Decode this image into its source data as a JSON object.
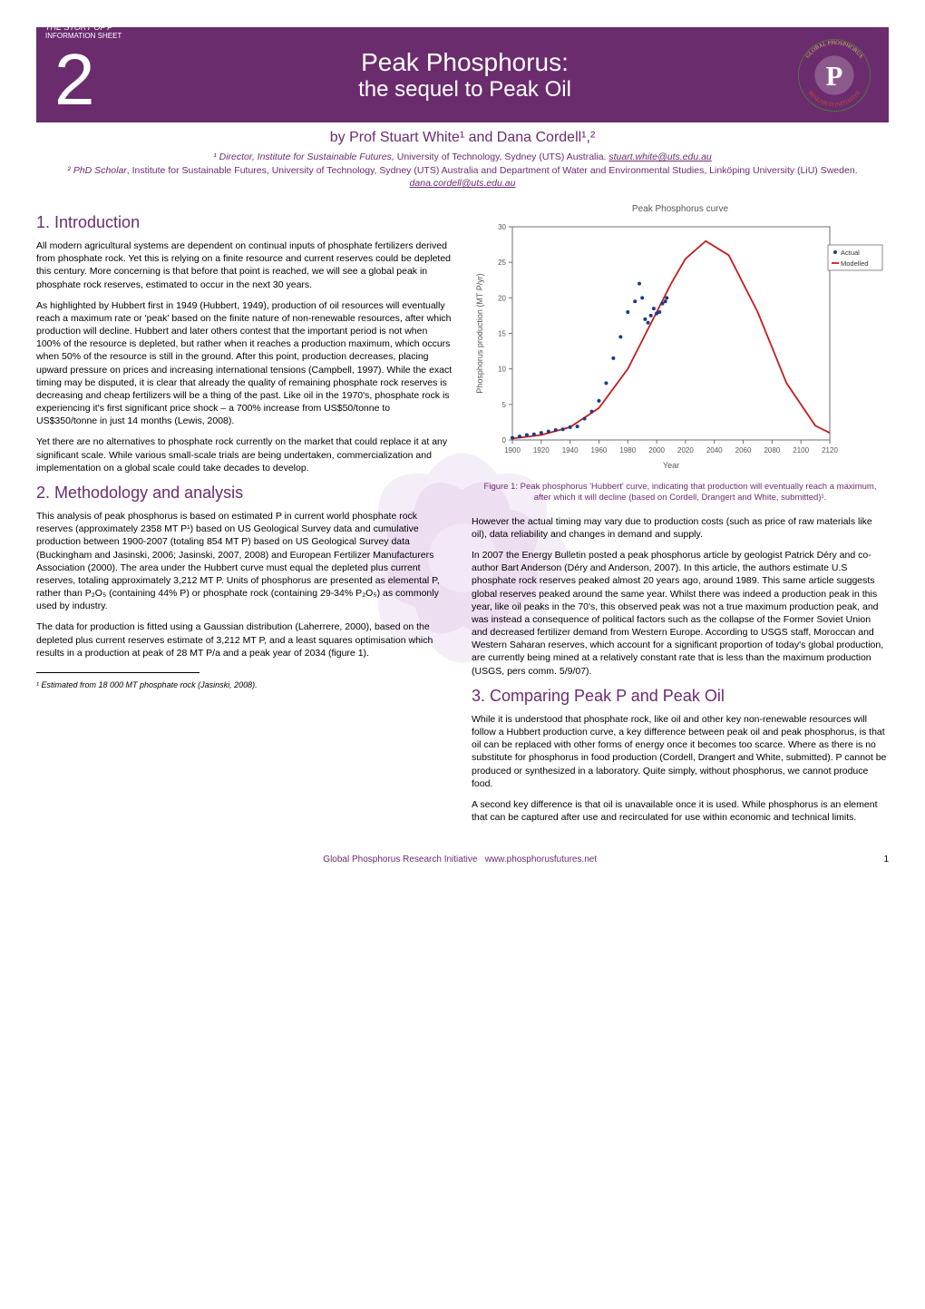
{
  "header": {
    "info_line1": "THE STORY OF P",
    "info_line2": "INFORMATION SHEET",
    "sheet_number": "2",
    "title_line1": "Peak Phosphorus:",
    "title_line2": "the sequel to Peak Oil",
    "logo_text_top": "GLOBAL PHOSPHORUS",
    "logo_text_bottom": "RESEARCH INITIATIVE",
    "bar_bg": "#6b2c6e",
    "bar_fg": "#ffffff"
  },
  "authors": {
    "byline": "by Prof Stuart White¹ and Dana Cordell¹,²",
    "aff1_label": "¹",
    "aff1_role": "Director, Institute for Sustainable Futures,",
    "aff1_inst": " University of Technology, Sydney (UTS) Australia. ",
    "aff1_email": "stuart.white@uts.edu.au",
    "aff2_label": "²",
    "aff2_role": "PhD Scholar",
    "aff2_inst": ", Institute for Sustainable Futures, University of Technology, Sydney (UTS) Australia and Department of Water and Environmental Studies, Linköping University (LiU) Sweden. ",
    "aff2_email": "dana.cordell@uts.edu.au"
  },
  "sections": {
    "s1_title": "1. Introduction",
    "s1_p1": "All modern agricultural systems are dependent on continual inputs of phosphate fertilizers derived from phosphate rock. Yet this is relying on a finite resource and current reserves could be depleted this century. More concerning is that before that point is reached, we will see a global peak in phosphate rock reserves, estimated to occur in the next 30 years.",
    "s1_p2": "As highlighted by Hubbert first in 1949 (Hubbert, 1949), production of oil resources will eventually reach a maximum rate or 'peak' based on the finite nature of non-renewable resources, after which production will decline. Hubbert and later others contest that the important period is not when 100% of the resource is depleted, but rather when it reaches a production maximum, which occurs when 50% of the resource is still in the ground. After this point, production decreases, placing upward pressure on prices and increasing international tensions (Campbell, 1997). While the exact timing may be disputed, it is clear that already the quality of remaining phosphate rock reserves is decreasing and cheap fertilizers will be a thing of the past. Like oil in the 1970's, phosphate rock is experiencing it's first significant price shock – a 700% increase from US$50/tonne to US$350/tonne in just 14 months (Lewis, 2008).",
    "s1_p3": "Yet there are no alternatives to phosphate rock currently on the market that could replace it at any significant scale. While various small-scale trials are being undertaken, commercialization and implementation on a global scale could take decades to develop.",
    "s2_title": "2. Methodology and analysis",
    "s2_p1": "This analysis of peak phosphorus is based on estimated P in current world phosphate rock reserves (approximately 2358 MT P¹) based on US Geological Survey data and cumulative production between 1900-2007 (totaling 854 MT P) based on US Geological Survey data (Buckingham and Jasinski, 2006; Jasinski, 2007, 2008) and European Fertilizer Manufacturers Association (2000). The area under the Hubbert curve must equal the depleted plus current reserves, totaling approximately 3,212 MT P. Units of phosphorus are presented as elemental P, rather than P₂O₅ (containing 44% P) or phosphate rock (containing 29-34% P₂O₅) as commonly used by industry.",
    "s2_p2": "The data for production is fitted using a Gaussian distribution (Laherrere, 2000), based on the depleted plus current reserves estimate of 3,212 MT P, and a least squares optimisation which results in a production at peak of 28 MT P/a and a peak year of 2034 (figure 1).",
    "right_p1": "However the actual timing may vary due to production costs (such as price of raw materials like oil), data reliability and changes in demand and supply.",
    "right_p2": "In 2007 the Energy Bulletin posted a peak phosphorus article by geologist Patrick Déry and co-author Bart Anderson (Déry and Anderson, 2007). In this article, the authors estimate U.S phosphate rock reserves peaked almost 20 years ago, around 1989. This same article suggests global reserves peaked around the same year. Whilst there was indeed a production peak in this year, like oil peaks in the 70's, this observed peak was not a true maximum production peak, and was instead a consequence of political factors such as the collapse of the Former Soviet Union and decreased fertilizer demand from Western Europe. According to USGS staff, Moroccan and Western Saharan reserves, which account for a significant proportion of today's global production, are currently being mined at a relatively constant rate that is less than the maximum production (USGS, pers comm. 5/9/07).",
    "s3_title": "3. Comparing Peak P and Peak Oil",
    "s3_p1": "While it is understood that phosphate rock, like oil and other key non-renewable resources will follow a Hubbert production curve, a key difference between peak oil and peak phosphorus, is that oil can be replaced with other forms of energy once it becomes too scarce. Where as there is no substitute for phosphorus in food production (Cordell, Drangert and White, submitted). P cannot be produced or synthesized in a laboratory. Quite simply, without phosphorus, we cannot produce food.",
    "s3_p2": "A second key difference is that oil is unavailable once it is used. While phosphorus is an element that can be captured after use and recirculated for use within economic and technical limits."
  },
  "chart": {
    "title": "Peak Phosphorus curve",
    "type": "line",
    "xlabel": "Year",
    "ylabel": "Phosphorus production (MT P/yr)",
    "xlim": [
      1900,
      2120
    ],
    "ylim": [
      0,
      30
    ],
    "xticks": [
      1900,
      1920,
      1940,
      1960,
      1980,
      2000,
      2020,
      2040,
      2060,
      2080,
      2100,
      2120
    ],
    "yticks": [
      0,
      5,
      10,
      15,
      20,
      25,
      30
    ],
    "background_color": "#ffffff",
    "border_color": "#6f6f6f",
    "tick_color": "#6f6f6f",
    "label_fontsize": 8,
    "title_fontsize": 10,
    "legend": {
      "position": "right",
      "entries": [
        "Actual",
        "Modelled"
      ]
    },
    "series": [
      {
        "name": "Modelled",
        "color": "#c51d1d",
        "linewidth": 1.8,
        "years": [
          1900,
          1920,
          1940,
          1960,
          1980,
          2000,
          2010,
          2020,
          2034,
          2050,
          2070,
          2090,
          2110,
          2120
        ],
        "values": [
          0.2,
          0.7,
          1.8,
          4.5,
          10,
          18,
          22,
          25.5,
          28,
          26,
          18,
          8,
          2,
          1
        ]
      },
      {
        "name": "Actual",
        "color": "#1b3a8a",
        "marker": "dot",
        "marker_size": 2,
        "years": [
          1900,
          1905,
          1910,
          1915,
          1920,
          1925,
          1930,
          1935,
          1940,
          1945,
          1950,
          1955,
          1960,
          1965,
          1970,
          1975,
          1980,
          1985,
          1988,
          1990,
          1992,
          1994,
          1996,
          1998,
          2000,
          2002,
          2004,
          2006,
          2007
        ],
        "values": [
          0.3,
          0.5,
          0.7,
          0.8,
          1.0,
          1.2,
          1.4,
          1.5,
          1.8,
          1.9,
          3.0,
          4.0,
          5.5,
          8.0,
          11.5,
          14.5,
          18.0,
          19.5,
          22.0,
          20.0,
          17.0,
          16.5,
          17.5,
          18.5,
          17.8,
          18.0,
          19.2,
          19.5,
          20.0
        ]
      }
    ]
  },
  "figure_caption": "Figure 1: Peak phosphorus 'Hubbert' curve, indicating that production will eventually reach a maximum, after which it will decline (based on Cordell, Drangert and White, submitted)¹.",
  "footnote": "¹ Estimated from 18 000 MT phosphate rock (Jasinski, 2008).",
  "footer": {
    "org": "Global Phosphorus Research Initiative",
    "url": "www.phosphorusfutures.net",
    "pagenum": "1"
  }
}
